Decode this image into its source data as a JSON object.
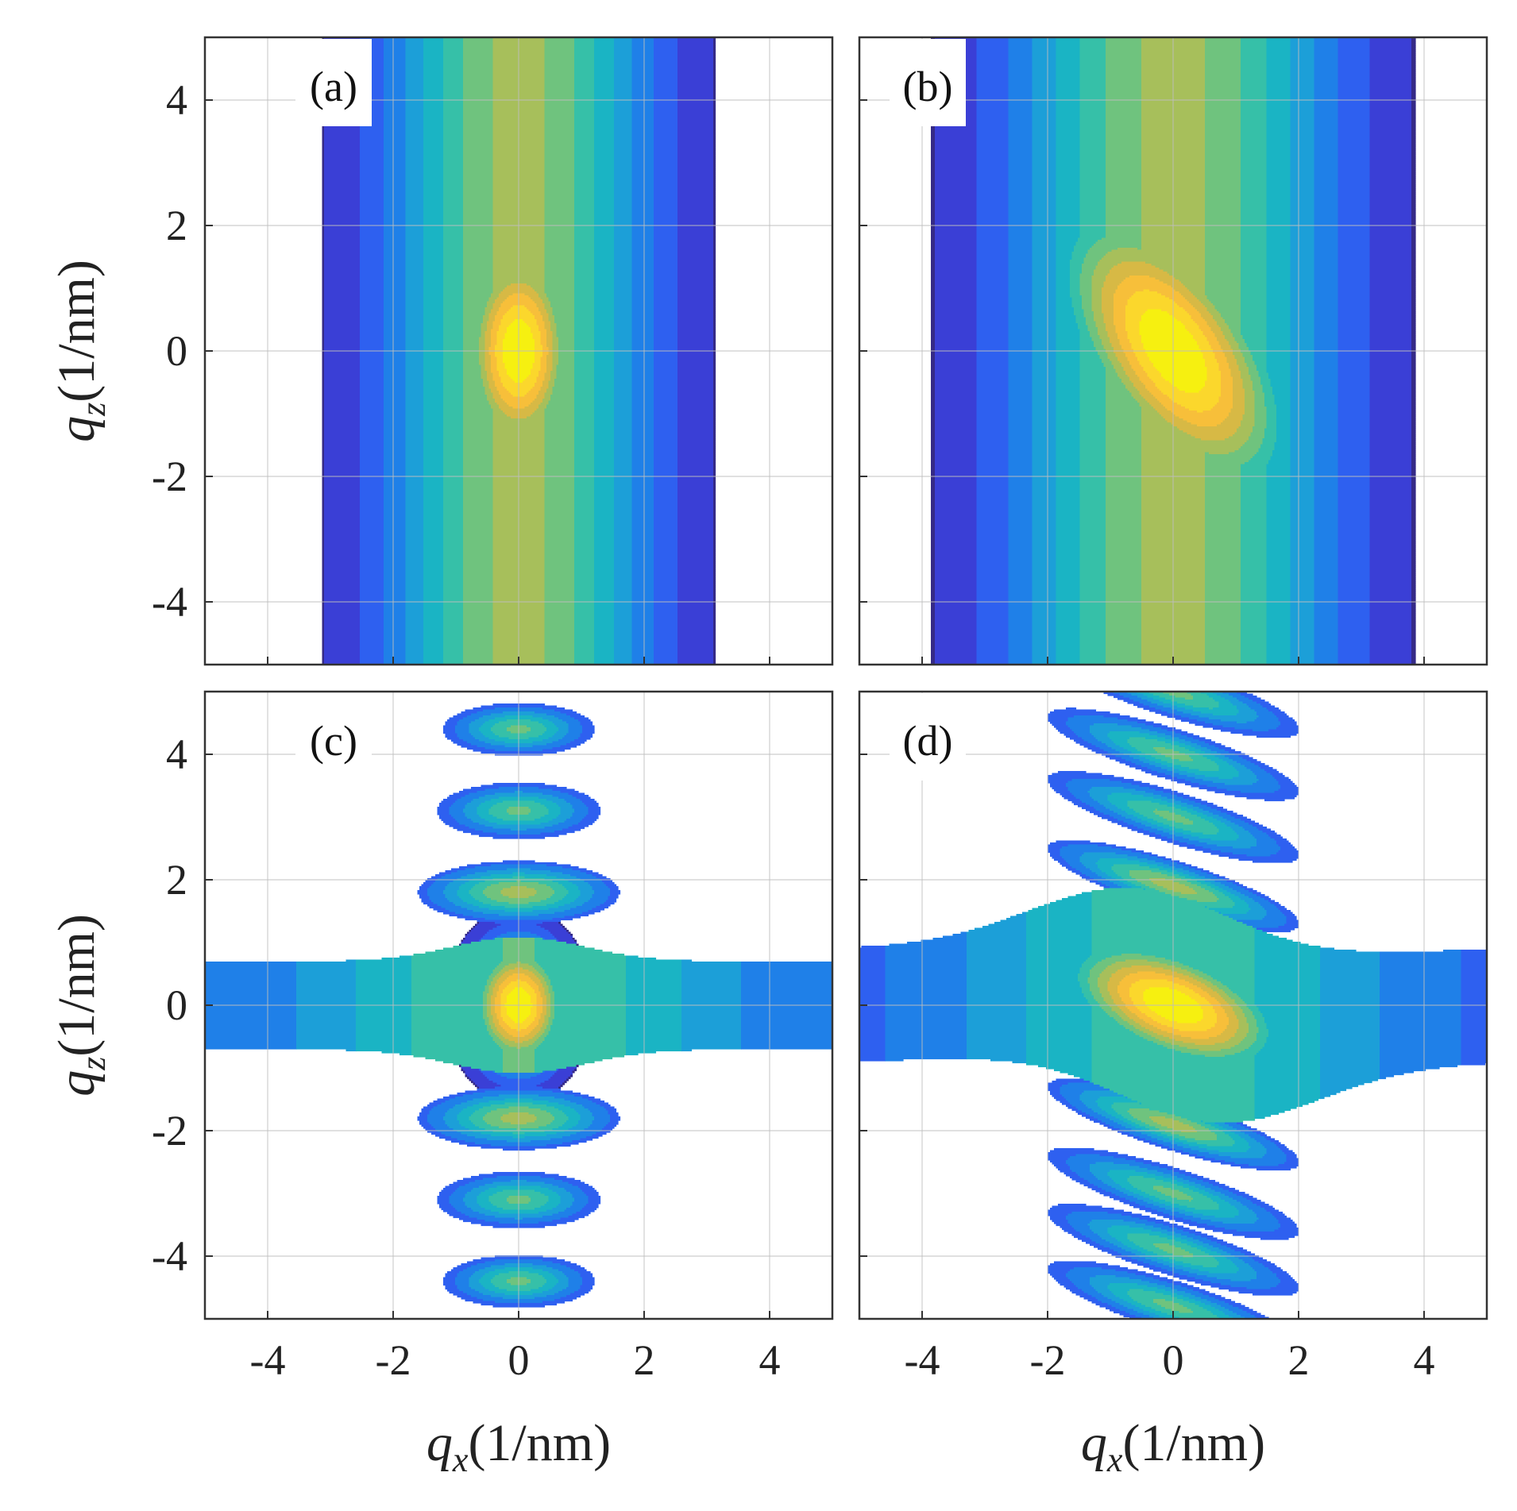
{
  "chart_data": {
    "type": "heatmap",
    "render": "filled-contour",
    "colormap": "parula",
    "contour_levels": 12,
    "grid": true,
    "x_axis": {
      "label": {
        "symbol": "q",
        "sub": "x",
        "unit": "(1/nm)"
      },
      "range": [
        -5,
        5
      ],
      "ticks": [
        -4,
        -2,
        0,
        2,
        4
      ],
      "tick_labels": [
        "-4",
        "-2",
        "0",
        "2",
        "4"
      ]
    },
    "y_axis": {
      "label": {
        "symbol": "q",
        "sub": "z",
        "unit": "(1/nm)"
      },
      "range": [
        -5,
        5
      ],
      "ticks": [
        -4,
        -2,
        0,
        2,
        4
      ],
      "tick_labels": [
        "-4",
        "-2",
        "0",
        "2",
        "4"
      ]
    },
    "panels": [
      {
        "id": "a",
        "label": "(a)",
        "description": "single elongated peak at origin, vertical bands, no data for |qx| > 3.5",
        "peak": {
          "qx": 0,
          "qz": 0,
          "sigma_x": 0.55,
          "sigma_z": 1.1
        },
        "tilt": 0,
        "data_qx_extent": [
          -3.5,
          3.5
        ],
        "background_level": 0.04
      },
      {
        "id": "b",
        "label": "(b)",
        "description": "broad tilted peak near origin over vertical background bands",
        "peak": {
          "qx": 0,
          "qz": 0,
          "sigma_x": 0.95,
          "sigma_z": 1.5
        },
        "tilt": -0.45,
        "data_qx_extent": [
          -5,
          5
        ],
        "background_level": 0.04
      },
      {
        "id": "c",
        "label": "(c)",
        "description": "central peak with horizontal streak and satellite lobes along qx = 0",
        "peak": {
          "qx": 0,
          "qz": 0,
          "sigma_x": 0.45,
          "sigma_z": 0.6
        },
        "streak": {
          "qz": 0,
          "half_width": 0.7
        },
        "satellites_qz": [
          -4.4,
          -3.1,
          -1.8,
          1.8,
          3.1,
          4.4
        ],
        "tilt": 0
      },
      {
        "id": "d",
        "label": "(d)",
        "description": "tilted central peak with streak and tilted satellite lobes",
        "peak": {
          "qx": 0,
          "qz": 0,
          "sigma_x": 1.0,
          "sigma_z": 0.55
        },
        "streak": {
          "qz": 0,
          "half_width": 0.9
        },
        "satellites_qz": [
          -4.8,
          -3.9,
          -3.0,
          -1.9,
          1.9,
          3.0,
          4.0,
          5.0
        ],
        "tilt": -0.3
      }
    ]
  },
  "colors": {
    "parula": [
      "#352a87",
      "#3a3fd6",
      "#2e60f0",
      "#1f80e8",
      "#1c9fd8",
      "#1ab4c4",
      "#36c0a8",
      "#6fc37e",
      "#a7bf5b",
      "#d7b945",
      "#f7bf3a",
      "#fbd72c",
      "#f6f010"
    ],
    "grid": "#bdbdbd",
    "frame": "#333333",
    "text": "#222222"
  }
}
